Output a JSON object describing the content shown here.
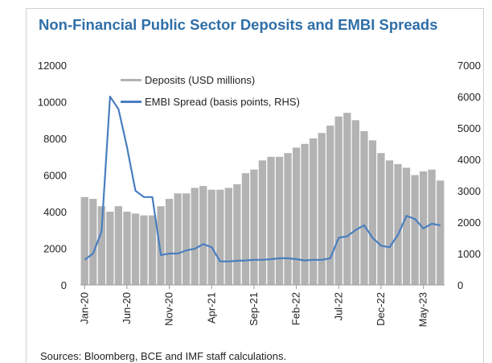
{
  "header": {
    "title": "Non-Financial Public Sector Deposits and EMBI Spreads"
  },
  "footer": {
    "source": "Sources: Bloomberg, BCE and IMF staff calculations."
  },
  "colors": {
    "deposits": "#b3b3b3",
    "embi": "#4a7ec0",
    "title": "#2f6fa8"
  },
  "chart_data": {
    "type": "bar",
    "title": "Non-Financial Public Sector Deposits and EMBI Spreads",
    "xlabel": "",
    "ylabel": "",
    "ylim": [
      0,
      12000
    ],
    "y2lim": [
      0,
      7000
    ],
    "yticks": [
      "0",
      "2000",
      "4000",
      "6000",
      "8000",
      "10000",
      "12000"
    ],
    "y2ticks": [
      "0",
      "1000",
      "2000",
      "3000",
      "4000",
      "5000",
      "6000",
      "7000"
    ],
    "xticks": [
      "Jan-20",
      "Jun-20",
      "Nov-20",
      "Apr-21",
      "Sep-21",
      "Feb-22",
      "Jul-22",
      "Dec-22",
      "May-23"
    ],
    "xrange": [
      "2020-01",
      "2023-07"
    ],
    "grid": false,
    "legend_position": "top-left",
    "series": [
      {
        "name": "Deposits (USD millions)",
        "type": "bar",
        "axis": "left",
        "x": [
          "2020-01",
          "2020-02",
          "2020-03",
          "2020-04",
          "2020-05",
          "2020-06",
          "2020-07",
          "2020-08",
          "2020-09",
          "2020-10",
          "2020-11",
          "2020-12",
          "2021-01",
          "2021-02",
          "2021-03",
          "2021-04",
          "2021-05",
          "2021-06",
          "2021-07",
          "2021-08",
          "2021-09",
          "2021-10",
          "2021-11",
          "2021-12",
          "2022-01",
          "2022-02",
          "2022-03",
          "2022-04",
          "2022-05",
          "2022-06",
          "2022-07",
          "2022-08",
          "2022-09",
          "2022-10",
          "2022-11",
          "2022-12",
          "2023-01",
          "2023-02",
          "2023-03",
          "2023-04",
          "2023-05",
          "2023-06",
          "2023-07"
        ],
        "values": [
          4800,
          4700,
          4300,
          4000,
          4300,
          4000,
          3900,
          3800,
          3800,
          4300,
          4700,
          5000,
          5000,
          5300,
          5400,
          5200,
          5200,
          5300,
          5500,
          6100,
          6300,
          6800,
          7000,
          7000,
          7200,
          7500,
          7700,
          8000,
          8300,
          8700,
          9200,
          9400,
          9000,
          8400,
          7900,
          7200,
          6800,
          6600,
          6400,
          6000,
          6200,
          6300,
          5700
        ]
      },
      {
        "name": "EMBI Spread (basis points, RHS)",
        "type": "line",
        "axis": "right",
        "x": [
          "2020-01",
          "2020-02",
          "2020-03",
          "2020-04",
          "2020-05",
          "2020-06",
          "2020-07",
          "2020-08",
          "2020-09",
          "2020-10",
          "2020-11",
          "2020-12",
          "2021-01",
          "2021-02",
          "2021-03",
          "2021-04",
          "2021-05",
          "2021-06",
          "2021-07",
          "2021-08",
          "2021-09",
          "2021-10",
          "2021-11",
          "2021-12",
          "2022-01",
          "2022-02",
          "2022-03",
          "2022-04",
          "2022-05",
          "2022-06",
          "2022-07",
          "2022-08",
          "2022-09",
          "2022-10",
          "2022-11",
          "2022-12",
          "2023-01",
          "2023-02",
          "2023-03",
          "2023-04",
          "2023-05",
          "2023-06",
          "2023-07"
        ],
        "values": [
          800,
          1000,
          1700,
          6000,
          5600,
          4400,
          3000,
          2800,
          2800,
          950,
          1000,
          1000,
          1100,
          1150,
          1300,
          1200,
          750,
          750,
          770,
          780,
          800,
          800,
          820,
          850,
          850,
          820,
          780,
          800,
          800,
          850,
          1500,
          1550,
          1750,
          1900,
          1500,
          1250,
          1200,
          1600,
          2200,
          2100,
          1800,
          1950,
          1900
        ]
      }
    ]
  }
}
